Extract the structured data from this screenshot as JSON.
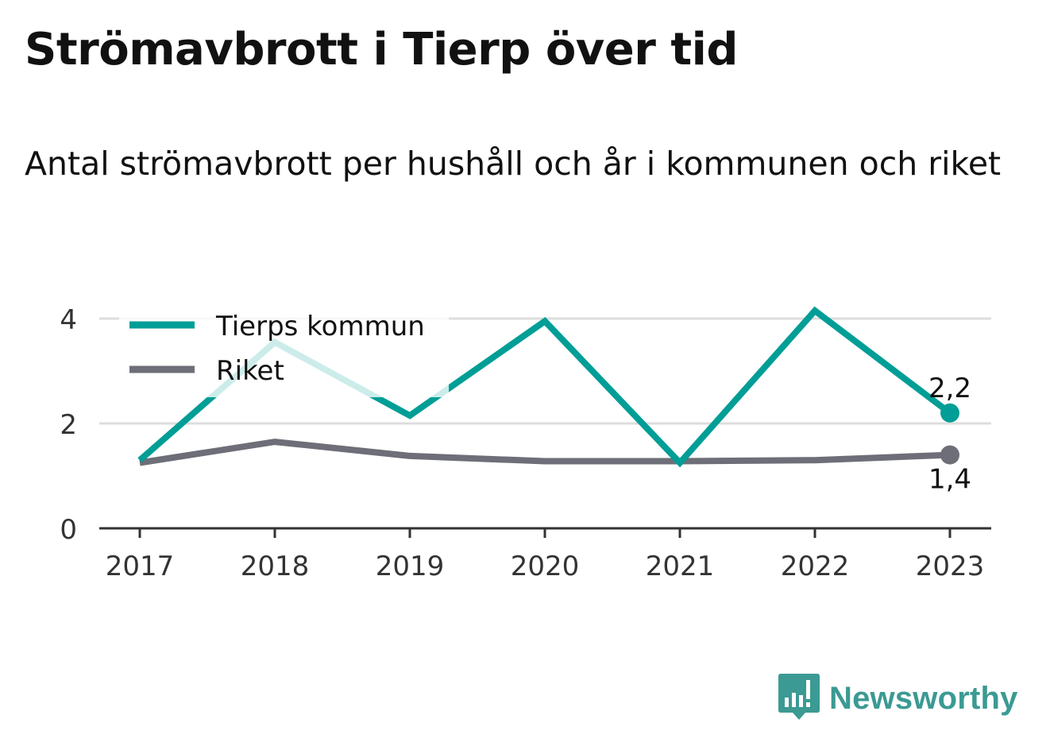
{
  "title": "Strömavbrott i Tierp över tid",
  "subtitle": "Antal strömavbrott per hushåll och år i kommunen och riket",
  "brand": {
    "name": "Newsworthy",
    "icon": "newsworthy-logo-icon"
  },
  "colors": {
    "tierp": "#009e96",
    "riket": "#6e6e78",
    "grid": "#dddddd",
    "axis": "#333333",
    "text": "#333333",
    "brand": "#3b9a93"
  },
  "chart_data": {
    "type": "line",
    "categories": [
      "2017",
      "2018",
      "2019",
      "2020",
      "2021",
      "2022",
      "2023"
    ],
    "series": [
      {
        "name": "Tierps kommun",
        "values": [
          1.3,
          3.55,
          2.15,
          3.95,
          1.25,
          4.15,
          2.2
        ],
        "end_label": "2,2"
      },
      {
        "name": "Riket",
        "values": [
          1.25,
          1.65,
          1.38,
          1.28,
          1.28,
          1.3,
          1.4
        ],
        "end_label": "1,4"
      }
    ],
    "yticks": [
      0,
      2,
      4
    ],
    "ylim": [
      0,
      4
    ],
    "grid": true,
    "legend": "top-left",
    "xlabel": "",
    "ylabel": ""
  }
}
